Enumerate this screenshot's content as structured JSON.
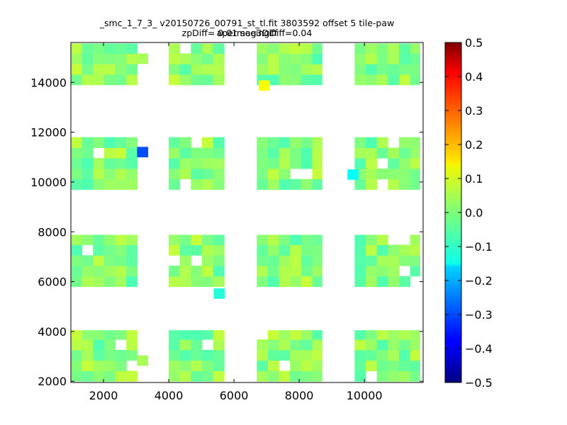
{
  "chart_data": {
    "type": "heatmap",
    "title": "_smc_1_7_3_ v20150726_00791_st_tl.fit 3803592 offset 5 tile-paw apermag3Diff",
    "subtitle": "zpDiff= 0.01 seeingDiff=0.04",
    "xlabel": "",
    "ylabel": "",
    "xlim": [
      1000,
      11800
    ],
    "ylim": [
      1950,
      15600
    ],
    "x_ticks": [
      "2000",
      "4000",
      "6000",
      "8000",
      "10000"
    ],
    "x_tick_values": [
      2000,
      4000,
      6000,
      8000,
      10000
    ],
    "y_ticks": [
      "2000",
      "4000",
      "6000",
      "8000",
      "10000",
      "12000",
      "14000"
    ],
    "y_tick_values": [
      2000,
      4000,
      6000,
      8000,
      10000,
      12000,
      14000
    ],
    "colorbar": {
      "min": -0.5,
      "max": 0.5,
      "colormap": "jet",
      "ticks": [
        "0.5",
        "0.4",
        "0.3",
        "0.2",
        "0.1",
        "0.0",
        "−0.1",
        "−0.2",
        "−0.3",
        "−0.4",
        "−0.5"
      ],
      "tick_values": [
        0.5,
        0.4,
        0.3,
        0.2,
        0.1,
        0.0,
        -0.1,
        -0.2,
        -0.3,
        -0.4,
        -0.5
      ]
    },
    "cell_size": [
      340,
      420
    ],
    "column_groups": [
      {
        "x_start": 1000,
        "x_end": 3030
      },
      {
        "x_start": 4000,
        "x_end": 5700
      },
      {
        "x_start": 6700,
        "x_end": 8700
      },
      {
        "x_start": 9700,
        "x_end": 11700
      }
    ],
    "row_groups": [
      {
        "y_start": 13900,
        "y_end": 15560
      },
      {
        "y_start": 9700,
        "y_end": 11800
      },
      {
        "y_start": 5800,
        "y_end": 7880
      },
      {
        "y_start": 2000,
        "y_end": 4050
      }
    ],
    "special_cells": [
      {
        "x": 3200,
        "y": 11200,
        "value": -0.3
      },
      {
        "x": 6930,
        "y": 13870,
        "value": 0.12
      },
      {
        "x": 9650,
        "y": 10300,
        "value": -0.12
      },
      {
        "x": 5550,
        "y": 5520,
        "value": -0.09
      },
      {
        "x": 3200,
        "y": 2830,
        "value": 0.04
      },
      {
        "x": 3200,
        "y": 14950,
        "value": 0.04
      }
    ],
    "typical_value_range": [
      -0.05,
      0.07
    ]
  }
}
